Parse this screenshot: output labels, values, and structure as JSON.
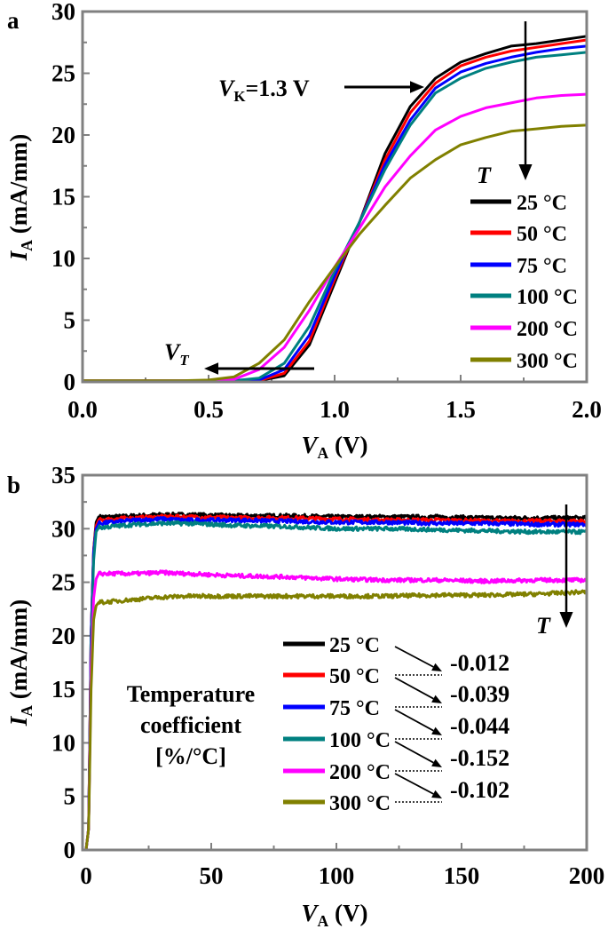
{
  "chart_data": [
    {
      "panel_label": "a",
      "type": "line",
      "xlabel": {
        "var": "V",
        "sub": "A",
        "unit": " (V)"
      },
      "ylabel": {
        "var": "I",
        "sub": "A",
        "unit": " (mA/mm)"
      },
      "xlim": [
        0,
        2.0
      ],
      "ylim": [
        0,
        30
      ],
      "xticks": [
        "0.0",
        "0.5",
        "1.0",
        "1.5",
        "2.0"
      ],
      "yticks": [
        "0",
        "5",
        "10",
        "15",
        "20",
        "25",
        "30"
      ],
      "grid": false,
      "legend_title": "T",
      "legend_placement": "right",
      "annotations": {
        "vk": {
          "var": "V",
          "sub": "K",
          "text": "=1.3 V"
        },
        "vt": {
          "var": "V",
          "sub": "T"
        }
      },
      "x": [
        0,
        0.1,
        0.2,
        0.3,
        0.4,
        0.5,
        0.6,
        0.7,
        0.8,
        0.9,
        1.0,
        1.1,
        1.2,
        1.3,
        1.4,
        1.5,
        1.6,
        1.7,
        1.8,
        1.9,
        2.0
      ],
      "series": [
        {
          "name": "25 °C",
          "color": "#000000",
          "values": [
            0.1,
            0.1,
            0.1,
            0.1,
            0.1,
            0.1,
            0.1,
            0.1,
            0.5,
            3.0,
            8.0,
            13.0,
            18.5,
            22.3,
            24.6,
            25.9,
            26.6,
            27.2,
            27.4,
            27.7,
            28.0
          ]
        },
        {
          "name": "50 °C",
          "color": "#ff0000",
          "values": [
            0.1,
            0.1,
            0.1,
            0.1,
            0.1,
            0.1,
            0.1,
            0.1,
            0.7,
            3.3,
            8.3,
            13.0,
            18.0,
            21.8,
            24.2,
            25.6,
            26.3,
            26.8,
            27.1,
            27.4,
            27.7
          ]
        },
        {
          "name": "75 °C",
          "color": "#0000ff",
          "values": [
            0.1,
            0.1,
            0.1,
            0.1,
            0.1,
            0.1,
            0.1,
            0.15,
            1.0,
            3.8,
            8.6,
            13.0,
            17.6,
            21.2,
            23.8,
            25.1,
            25.8,
            26.3,
            26.7,
            27.0,
            27.2
          ]
        },
        {
          "name": "100 °C",
          "color": "#008080",
          "values": [
            0.1,
            0.1,
            0.1,
            0.1,
            0.1,
            0.1,
            0.1,
            0.3,
            1.5,
            4.5,
            9.0,
            13.0,
            17.2,
            20.8,
            23.4,
            24.6,
            25.4,
            25.9,
            26.3,
            26.5,
            26.7
          ]
        },
        {
          "name": "200 °C",
          "color": "#ff00ff",
          "values": [
            0.1,
            0.1,
            0.1,
            0.1,
            0.1,
            0.1,
            0.2,
            1.0,
            2.8,
            5.8,
            9.3,
            12.5,
            15.8,
            18.3,
            20.4,
            21.5,
            22.2,
            22.6,
            23.0,
            23.2,
            23.3
          ]
        },
        {
          "name": "300 °C",
          "color": "#808000",
          "values": [
            0.1,
            0.1,
            0.1,
            0.1,
            0.1,
            0.15,
            0.4,
            1.5,
            3.4,
            6.5,
            9.3,
            12.0,
            14.3,
            16.5,
            18.0,
            19.2,
            19.8,
            20.3,
            20.5,
            20.7,
            20.8
          ]
        }
      ]
    },
    {
      "panel_label": "b",
      "type": "line",
      "xlabel": {
        "var": "V",
        "sub": "A",
        "unit": " (V)"
      },
      "ylabel": {
        "var": "I",
        "sub": "A",
        "unit": " (mA/mm)"
      },
      "xlim": [
        0,
        200
      ],
      "ylim": [
        0,
        35
      ],
      "xticks": [
        "0",
        "50",
        "100",
        "150",
        "200"
      ],
      "yticks": [
        "0",
        "5",
        "10",
        "15",
        "20",
        "25",
        "30",
        "35"
      ],
      "grid": false,
      "legend_title": "T",
      "legend_placement": "lower-right",
      "coefficient_title": [
        "Temperature",
        "coefficient",
        "[%/°C]"
      ],
      "coefficients": [
        "-0.012",
        "-0.039",
        "-0.044",
        "-0.152",
        "-0.102"
      ],
      "x": [
        0,
        1,
        2,
        3,
        4,
        5,
        10,
        20,
        30,
        40,
        60,
        80,
        100,
        120,
        140,
        160,
        180,
        200
      ],
      "series": [
        {
          "name": "25 °C",
          "color": "#000000",
          "values": [
            0,
            2,
            20,
            28,
            30.6,
            31.1,
            31.1,
            31.2,
            31.3,
            31.3,
            31.2,
            31.2,
            31.1,
            31.1,
            31.1,
            31.0,
            31.0,
            31.0
          ]
        },
        {
          "name": "50 °C",
          "color": "#ff0000",
          "values": [
            0,
            2,
            20,
            28,
            30.3,
            30.8,
            30.9,
            31.0,
            31.1,
            31.1,
            31.0,
            31.0,
            30.9,
            30.8,
            30.8,
            30.7,
            30.7,
            30.7
          ]
        },
        {
          "name": "75 °C",
          "color": "#0000ff",
          "values": [
            0,
            2,
            20,
            27.8,
            30.0,
            30.5,
            30.6,
            30.8,
            30.9,
            30.8,
            30.8,
            30.7,
            30.6,
            30.6,
            30.5,
            30.5,
            30.4,
            30.4
          ]
        },
        {
          "name": "100 °C",
          "color": "#008080",
          "values": [
            0,
            2,
            19,
            27,
            29.7,
            30.1,
            30.2,
            30.4,
            30.5,
            30.5,
            30.3,
            30.2,
            30.0,
            30.0,
            29.9,
            29.8,
            29.7,
            29.7
          ]
        },
        {
          "name": "200 °C",
          "color": "#ff00ff",
          "values": [
            0,
            2,
            17,
            23.5,
            25.3,
            25.8,
            25.8,
            25.8,
            25.9,
            25.8,
            25.6,
            25.5,
            25.3,
            25.2,
            25.2,
            25.1,
            25.2,
            25.2
          ]
        },
        {
          "name": "300 °C",
          "color": "#808000",
          "values": [
            0,
            2,
            15,
            21.5,
            22.8,
            23.1,
            23.2,
            23.4,
            23.6,
            23.7,
            23.7,
            23.7,
            23.7,
            23.7,
            23.8,
            23.8,
            23.9,
            24.1
          ]
        }
      ]
    }
  ]
}
